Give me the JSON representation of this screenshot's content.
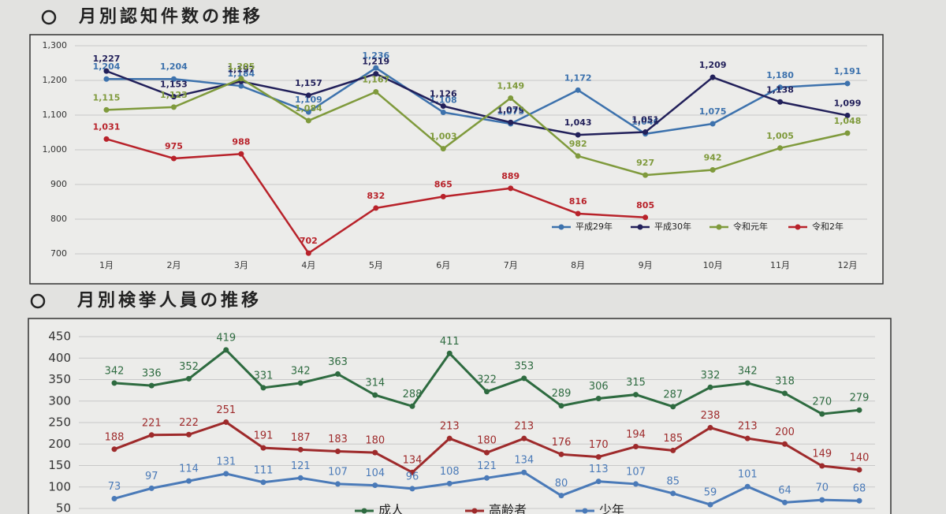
{
  "chart_data": [
    {
      "type": "line",
      "title": "月別認知件数の推移",
      "categories": [
        "1月",
        "2月",
        "3月",
        "4月",
        "5月",
        "6月",
        "7月",
        "8月",
        "9月",
        "10月",
        "11月",
        "12月"
      ],
      "ylim": [
        700,
        1300
      ],
      "yticks": [
        700,
        800,
        900,
        {
          "value": 1000,
          "label": "1,000"
        },
        {
          "value": 1100,
          "label": "1,100"
        },
        {
          "value": 1200,
          "label": "1,200"
        },
        {
          "value": 1300,
          "label": "1,300"
        }
      ],
      "legend": "bottom-right",
      "series": [
        {
          "name": "平成29年",
          "color": "#3d72ad",
          "values": [
            1204,
            1204,
            1184,
            1109,
            1236,
            1108,
            1075,
            1172,
            1046,
            1075,
            1180,
            1191
          ],
          "value_labels": [
            "1,204",
            "1,204",
            "1,184",
            "1,109",
            "1,236",
            "1,108",
            "1,075",
            "1,172",
            "1,046",
            "1,075",
            "1,180",
            "1,191"
          ]
        },
        {
          "name": "平成30年",
          "color": "#22205a",
          "values": [
            1227,
            1153,
            1197,
            1157,
            1219,
            1126,
            1079,
            1043,
            1051,
            1209,
            1138,
            1099
          ],
          "value_labels": [
            "1,227",
            "1,153",
            "1,197",
            "1,157",
            "1,219",
            "1,126",
            "1,079",
            "1,043",
            "1,051",
            "1,209",
            "1,138",
            "1,099"
          ]
        },
        {
          "name": "令和元年",
          "color": "#7f9a3c",
          "values": [
            1115,
            1123,
            1205,
            1084,
            1167,
            1003,
            1149,
            982,
            927,
            942,
            1005,
            1048
          ],
          "value_labels": [
            "1,115",
            "1,123",
            "1,205",
            "1,084",
            "1,167",
            "1,003",
            "1,149",
            "982",
            "927",
            "942",
            "1,005",
            "1,048"
          ]
        },
        {
          "name": "令和2年",
          "color": "#b8222a",
          "values": [
            1031,
            975,
            988,
            702,
            832,
            865,
            889,
            816,
            805,
            null,
            null,
            null
          ],
          "value_labels": [
            "1,031",
            "975",
            "988",
            "702",
            "832",
            "865",
            "889",
            "816",
            "805",
            null,
            null,
            null
          ]
        }
      ]
    },
    {
      "type": "line",
      "title": "月別検挙人員の推移",
      "categories": [
        null,
        null,
        null,
        null,
        null,
        null,
        null,
        null,
        null,
        null,
        null,
        null,
        null,
        null,
        null,
        null,
        null,
        null,
        null,
        null,
        null
      ],
      "ylim": [
        50,
        450
      ],
      "yticks": [
        50,
        100,
        150,
        200,
        250,
        300,
        350,
        400,
        450
      ],
      "legend": "bottom",
      "series": [
        {
          "name": "成人",
          "color": "#2e6b40",
          "values": [
            342,
            336,
            352,
            419,
            331,
            342,
            363,
            314,
            288,
            411,
            322,
            353,
            289,
            306,
            315,
            287,
            332,
            342,
            318,
            270,
            279
          ]
        },
        {
          "name": "高齢者",
          "color": "#9e2a2b",
          "values": [
            188,
            221,
            222,
            251,
            191,
            187,
            183,
            180,
            134,
            213,
            180,
            213,
            176,
            170,
            194,
            185,
            238,
            213,
            200,
            149,
            140
          ]
        },
        {
          "name": "少年",
          "color": "#4a7ab8",
          "values": [
            73,
            97,
            114,
            131,
            111,
            121,
            107,
            104,
            96,
            108,
            121,
            134,
            80,
            113,
            107,
            85,
            59,
            101,
            64,
            70,
            68
          ]
        }
      ]
    }
  ]
}
